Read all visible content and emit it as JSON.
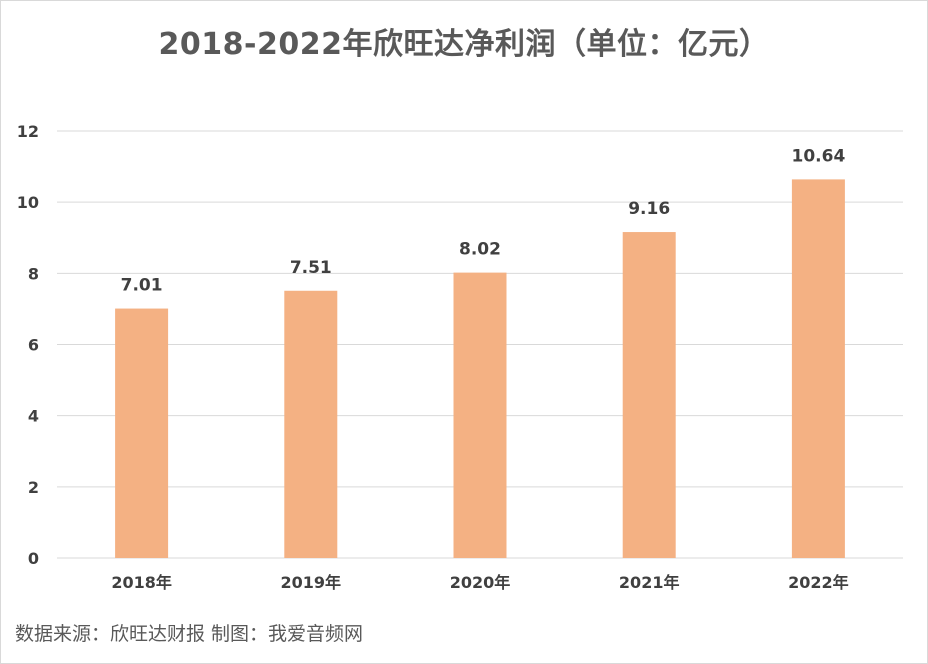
{
  "chart_data": {
    "type": "bar",
    "title": "2018-2022年欣旺达净利润（单位：亿元）",
    "xlabel": "",
    "ylabel": "",
    "categories": [
      "2018年",
      "2019年",
      "2020年",
      "2021年",
      "2022年"
    ],
    "values": [
      7.01,
      7.51,
      8.02,
      9.16,
      10.64
    ],
    "value_labels": [
      "7.01",
      "7.51",
      "8.02",
      "9.16",
      "10.64"
    ],
    "ylim": [
      0,
      12
    ],
    "yticks": [
      0,
      2,
      4,
      6,
      8,
      10,
      12
    ],
    "grid": true,
    "legend": "none",
    "bar_color": "#F4B183",
    "grid_color": "#D9D9D9"
  },
  "footer": {
    "source": "数据来源：欣旺达财报 制图：我爱音频网"
  }
}
